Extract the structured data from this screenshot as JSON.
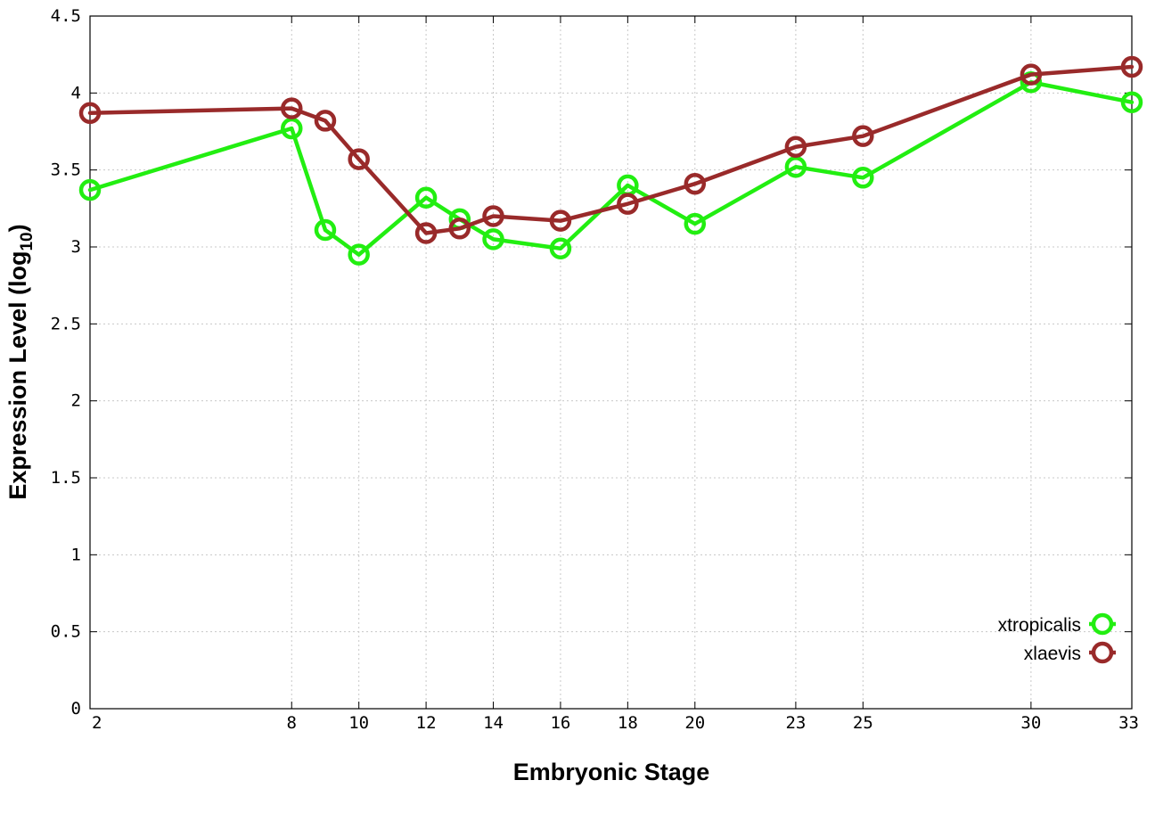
{
  "chart_data": {
    "type": "line",
    "xlabel": "Embryonic Stage",
    "ylabel": "Expression Level (log",
    "ylabel_subscript": "10",
    "ylabel_suffix": ")",
    "x_tick_labels": [
      "2",
      "8",
      "10",
      "12",
      "14",
      "16",
      "18",
      "20",
      "23",
      "25",
      "30",
      "33"
    ],
    "y_tick_labels": [
      "0",
      "0.5",
      "1",
      "1.5",
      "2",
      "2.5",
      "3",
      "3.5",
      "4",
      "4.5"
    ],
    "xlim": [
      2,
      33
    ],
    "ylim": [
      0,
      4.5
    ],
    "grid": true,
    "legend_position": "bottom-right",
    "x": [
      2,
      8,
      9,
      10,
      12,
      13,
      14,
      16,
      18,
      20,
      23,
      25,
      30,
      33
    ],
    "series": [
      {
        "name": "xtropicalis",
        "color": "#22ee11",
        "values": [
          3.37,
          3.77,
          3.11,
          2.95,
          3.32,
          3.18,
          3.05,
          2.99,
          3.4,
          3.15,
          3.52,
          3.45,
          4.07,
          3.94
        ]
      },
      {
        "name": "xlaevis",
        "color": "#992a2a",
        "values": [
          3.87,
          3.9,
          3.82,
          3.57,
          3.09,
          3.12,
          3.2,
          3.17,
          3.28,
          3.41,
          3.65,
          3.72,
          4.12,
          4.17
        ]
      }
    ]
  }
}
